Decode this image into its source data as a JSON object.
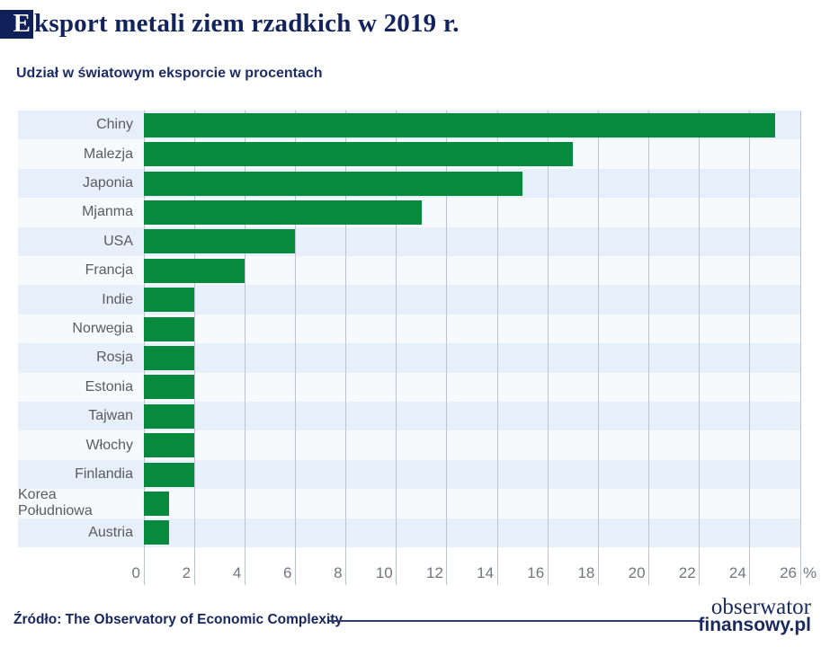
{
  "header": {
    "title_first_letter": "E",
    "title_rest": "ksport metali ziem rzadkich w 2019 r.",
    "subtitle": "Udział w światowym eksporcie w procentach"
  },
  "chart_data": {
    "type": "bar",
    "orientation": "horizontal",
    "title": "Eksport metali ziem rzadkich w 2019 r.",
    "subtitle": "Udział w światowym eksporcie w procentach",
    "xlabel": "",
    "ylabel": "",
    "categories": [
      "Chiny",
      "Malezja",
      "Japonia",
      "Mjanma",
      "USA",
      "Francja",
      "Indie",
      "Norwegia",
      "Rosja",
      "Estonia",
      "Tajwan",
      "Włochy",
      "Finlandia",
      "Korea Południowa",
      "Austria"
    ],
    "values": [
      25,
      17,
      15,
      11,
      6,
      4,
      2,
      2,
      2,
      2,
      2,
      2,
      2,
      1,
      1
    ],
    "xlim": [
      0,
      26
    ],
    "xticks": [
      0,
      2,
      4,
      6,
      8,
      10,
      12,
      14,
      16,
      18,
      20,
      22,
      24,
      26
    ],
    "unit_label": "%",
    "grid": true,
    "legend": false,
    "bar_color": "#078a3d",
    "stripe_color_odd": "#e7effa",
    "stripe_color_even": "#f7fafd"
  },
  "footer": {
    "source": "Źródło: The Observatory of Economic Complexity",
    "logo_line1": "obserwator",
    "logo_line2": "finansowy.pl"
  },
  "colors": {
    "navy": "#13235c",
    "green": "#078a3d",
    "tick_gray": "#72767c",
    "label_gray": "#595c60"
  }
}
